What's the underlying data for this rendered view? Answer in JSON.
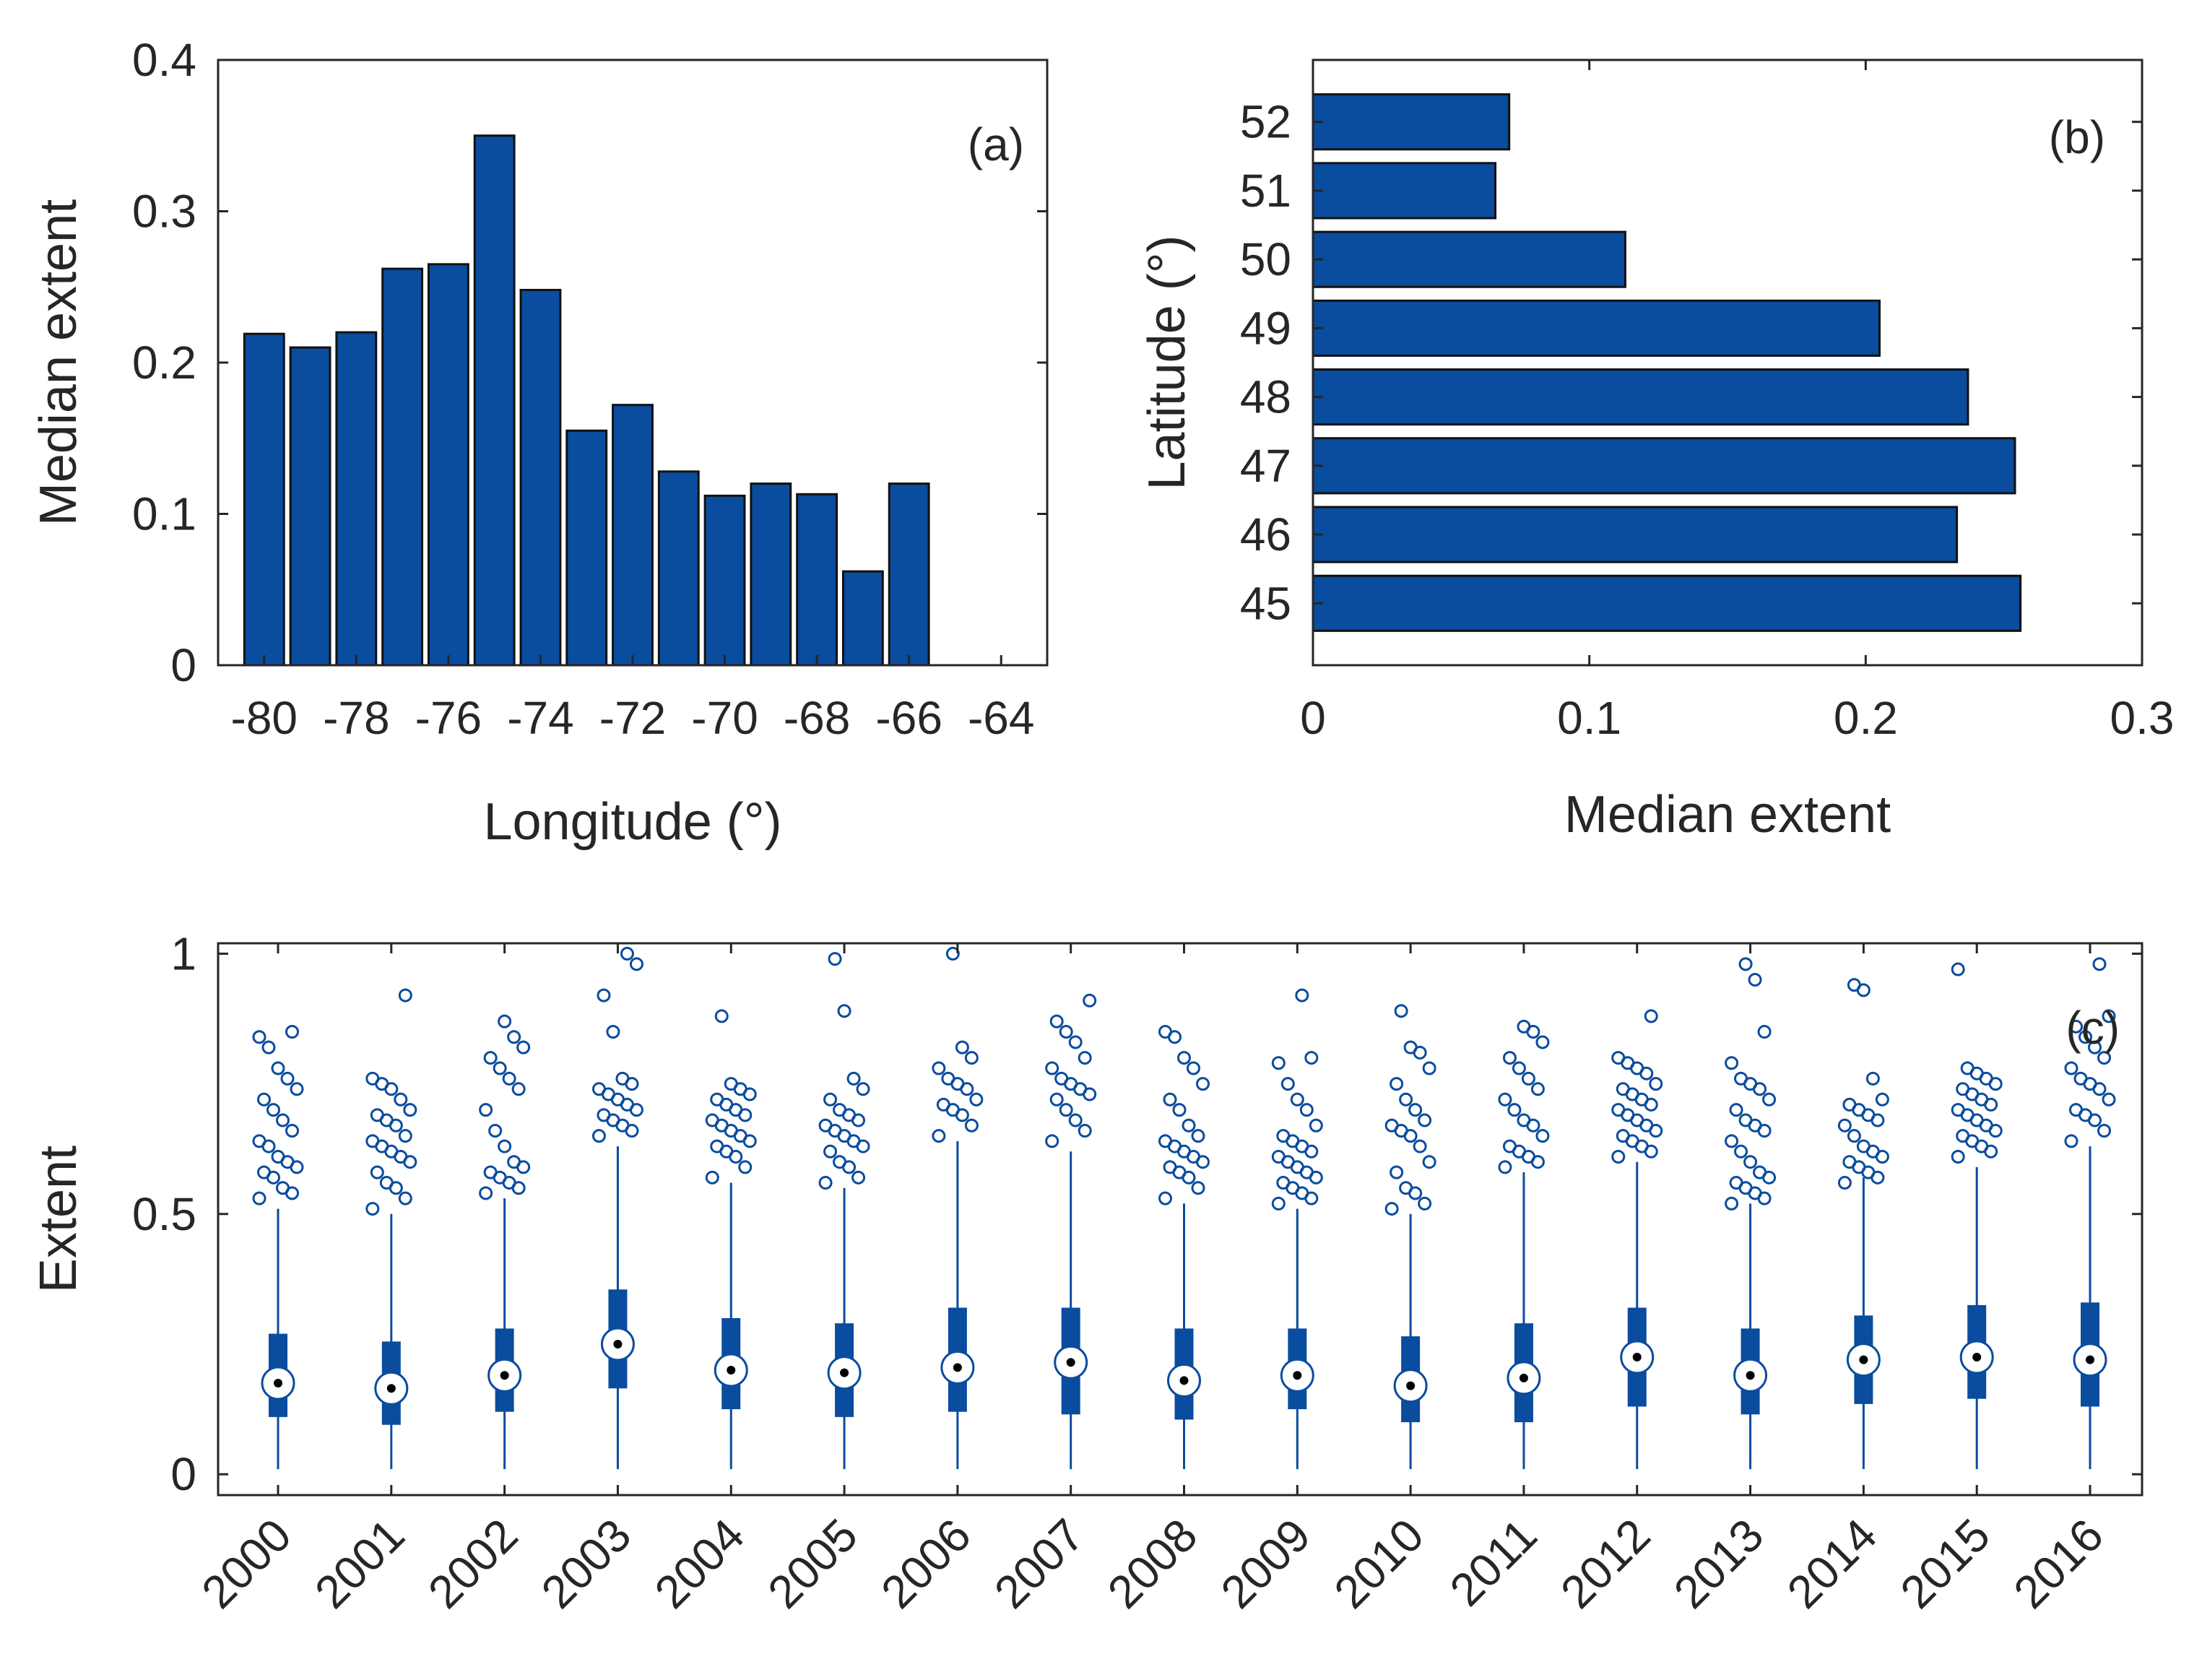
{
  "chart_data": [
    {
      "id": "a",
      "type": "bar",
      "panel_label": "(a)",
      "xlabel": "Longitude (°)",
      "ylabel": "Median extent",
      "xlim": [
        -81,
        -63
      ],
      "ylim": [
        0,
        0.4
      ],
      "xticks": [
        -80,
        -78,
        -76,
        -74,
        -72,
        -70,
        -68,
        -66,
        -64
      ],
      "xtick_labels": [
        "-80",
        "-78",
        "-76",
        "-74",
        "-72",
        "-70",
        "-68",
        "-66",
        "-64"
      ],
      "yticks": [
        0,
        0.1,
        0.2,
        0.3,
        0.4
      ],
      "ytick_labels": [
        "0",
        "0.1",
        "0.2",
        "0.3",
        "0.4"
      ],
      "x": [
        -80,
        -79,
        -78,
        -77,
        -76,
        -75,
        -74,
        -73,
        -72,
        -71,
        -70,
        -69,
        -68,
        -67,
        -66
      ],
      "values": [
        0.219,
        0.21,
        0.22,
        0.262,
        0.265,
        0.35,
        0.248,
        0.155,
        0.172,
        0.128,
        0.112,
        0.12,
        0.113,
        0.062,
        0.12
      ],
      "color": "#0a4c9e"
    },
    {
      "id": "b",
      "type": "bar",
      "orientation": "horizontal",
      "panel_label": "(b)",
      "xlabel": "Median extent",
      "ylabel": "Latitude (°)",
      "xlim": [
        0,
        0.3
      ],
      "ylim": [
        44.1,
        52.9
      ],
      "xticks": [
        0,
        0.1,
        0.2,
        0.3
      ],
      "xtick_labels": [
        "0",
        "0.1",
        "0.2",
        "0.3"
      ],
      "yticks": [
        45,
        46,
        47,
        48,
        49,
        50,
        51,
        52
      ],
      "ytick_labels": [
        "45",
        "46",
        "47",
        "48",
        "49",
        "50",
        "51",
        "52"
      ],
      "categories": [
        45,
        46,
        47,
        48,
        49,
        50,
        51,
        52
      ],
      "values": [
        0.256,
        0.233,
        0.254,
        0.237,
        0.205,
        0.113,
        0.066,
        0.071
      ],
      "color": "#0a4c9e"
    },
    {
      "id": "c",
      "type": "box",
      "panel_label": "(c)",
      "xlabel": "",
      "ylabel": "Extent",
      "ylim": [
        -0.04,
        1.02
      ],
      "yticks": [
        0,
        0.5,
        1
      ],
      "ytick_labels": [
        "0",
        "0.5",
        "1"
      ],
      "categories": [
        "2000",
        "2001",
        "2002",
        "2003",
        "2004",
        "2005",
        "2006",
        "2007",
        "2008",
        "2009",
        "2010",
        "2011",
        "2012",
        "2013",
        "2014",
        "2015",
        "2016"
      ],
      "median": [
        0.175,
        0.165,
        0.19,
        0.25,
        0.2,
        0.195,
        0.205,
        0.215,
        0.18,
        0.19,
        0.17,
        0.185,
        0.225,
        0.19,
        0.22,
        0.225,
        0.22
      ],
      "q1": [
        0.11,
        0.095,
        0.12,
        0.165,
        0.125,
        0.11,
        0.12,
        0.115,
        0.105,
        0.125,
        0.1,
        0.1,
        0.13,
        0.115,
        0.135,
        0.145,
        0.13
      ],
      "q3": [
        0.27,
        0.255,
        0.28,
        0.355,
        0.3,
        0.29,
        0.32,
        0.32,
        0.28,
        0.28,
        0.265,
        0.29,
        0.32,
        0.28,
        0.305,
        0.325,
        0.33
      ],
      "whisker_low": [
        0.01,
        0.01,
        0.01,
        0.01,
        0.01,
        0.01,
        0.01,
        0.01,
        0.01,
        0.01,
        0.01,
        0.01,
        0.01,
        0.01,
        0.01,
        0.01,
        0.01
      ],
      "whisker_high": [
        0.51,
        0.5,
        0.53,
        0.63,
        0.56,
        0.55,
        0.64,
        0.62,
        0.52,
        0.51,
        0.5,
        0.58,
        0.6,
        0.52,
        0.57,
        0.59,
        0.63
      ],
      "outliers": [
        [
          0.53,
          0.54,
          0.55,
          0.57,
          0.58,
          0.59,
          0.6,
          0.61,
          0.63,
          0.64,
          0.66,
          0.68,
          0.7,
          0.72,
          0.74,
          0.76,
          0.78,
          0.82,
          0.84,
          0.85
        ],
        [
          0.51,
          0.53,
          0.55,
          0.56,
          0.58,
          0.6,
          0.61,
          0.62,
          0.63,
          0.64,
          0.65,
          0.67,
          0.68,
          0.69,
          0.7,
          0.72,
          0.74,
          0.75,
          0.76,
          0.92
        ],
        [
          0.54,
          0.55,
          0.56,
          0.57,
          0.58,
          0.59,
          0.6,
          0.63,
          0.66,
          0.7,
          0.74,
          0.76,
          0.78,
          0.8,
          0.82,
          0.84,
          0.87
        ],
        [
          0.65,
          0.66,
          0.67,
          0.68,
          0.69,
          0.7,
          0.71,
          0.72,
          0.73,
          0.74,
          0.75,
          0.76,
          0.85,
          0.92,
          0.98,
          1.0
        ],
        [
          0.57,
          0.59,
          0.61,
          0.62,
          0.63,
          0.64,
          0.65,
          0.66,
          0.67,
          0.68,
          0.69,
          0.7,
          0.71,
          0.72,
          0.73,
          0.74,
          0.75,
          0.88
        ],
        [
          0.56,
          0.57,
          0.59,
          0.6,
          0.62,
          0.63,
          0.64,
          0.65,
          0.66,
          0.67,
          0.68,
          0.69,
          0.7,
          0.72,
          0.74,
          0.76,
          0.89,
          0.99
        ],
        [
          0.65,
          0.67,
          0.69,
          0.7,
          0.71,
          0.72,
          0.74,
          0.75,
          0.76,
          0.78,
          0.8,
          0.82,
          1.0
        ],
        [
          0.64,
          0.66,
          0.68,
          0.7,
          0.72,
          0.73,
          0.74,
          0.75,
          0.76,
          0.78,
          0.8,
          0.83,
          0.85,
          0.87,
          0.91
        ],
        [
          0.53,
          0.55,
          0.57,
          0.58,
          0.59,
          0.6,
          0.61,
          0.62,
          0.63,
          0.64,
          0.65,
          0.67,
          0.7,
          0.72,
          0.75,
          0.78,
          0.8,
          0.84,
          0.85
        ],
        [
          0.52,
          0.53,
          0.54,
          0.55,
          0.56,
          0.57,
          0.58,
          0.59,
          0.6,
          0.61,
          0.62,
          0.63,
          0.64,
          0.65,
          0.67,
          0.7,
          0.72,
          0.75,
          0.79,
          0.8,
          0.92
        ],
        [
          0.51,
          0.52,
          0.54,
          0.55,
          0.58,
          0.6,
          0.63,
          0.65,
          0.66,
          0.67,
          0.68,
          0.7,
          0.72,
          0.75,
          0.78,
          0.81,
          0.82,
          0.89
        ],
        [
          0.59,
          0.6,
          0.61,
          0.62,
          0.63,
          0.65,
          0.67,
          0.68,
          0.7,
          0.72,
          0.74,
          0.76,
          0.78,
          0.8,
          0.83,
          0.85,
          0.86
        ],
        [
          0.61,
          0.62,
          0.63,
          0.64,
          0.65,
          0.66,
          0.67,
          0.68,
          0.69,
          0.7,
          0.71,
          0.72,
          0.73,
          0.74,
          0.75,
          0.77,
          0.78,
          0.79,
          0.8,
          0.88
        ],
        [
          0.52,
          0.53,
          0.54,
          0.55,
          0.56,
          0.57,
          0.58,
          0.6,
          0.62,
          0.64,
          0.66,
          0.67,
          0.68,
          0.7,
          0.72,
          0.74,
          0.75,
          0.76,
          0.79,
          0.85,
          0.95,
          0.98
        ],
        [
          0.56,
          0.57,
          0.58,
          0.59,
          0.6,
          0.61,
          0.62,
          0.63,
          0.65,
          0.67,
          0.68,
          0.69,
          0.7,
          0.71,
          0.72,
          0.76,
          0.93,
          0.94
        ],
        [
          0.61,
          0.62,
          0.63,
          0.64,
          0.65,
          0.66,
          0.67,
          0.68,
          0.69,
          0.7,
          0.71,
          0.72,
          0.73,
          0.74,
          0.75,
          0.76,
          0.77,
          0.78,
          0.97
        ],
        [
          0.64,
          0.66,
          0.68,
          0.69,
          0.7,
          0.72,
          0.74,
          0.75,
          0.76,
          0.78,
          0.8,
          0.82,
          0.84,
          0.86,
          0.88,
          0.98
        ]
      ],
      "color": "#0a4c9e"
    }
  ]
}
